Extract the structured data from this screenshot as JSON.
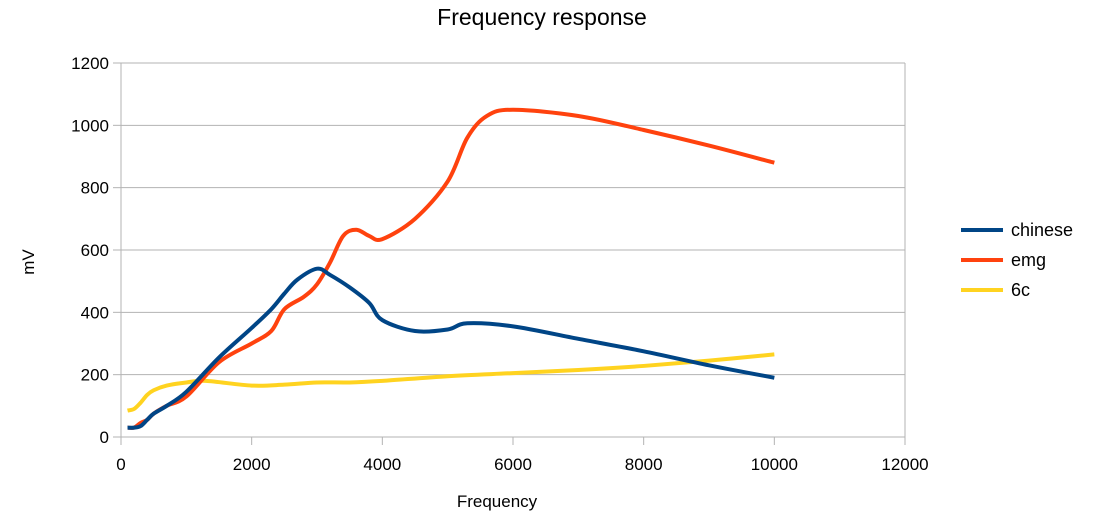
{
  "chart_data": {
    "type": "line",
    "title": "Frequency response",
    "xlabel": "Frequency",
    "ylabel": "mV",
    "xlim": [
      0,
      12000
    ],
    "ylim": [
      0,
      1200
    ],
    "x_ticks": [
      "0",
      "2000",
      "4000",
      "6000",
      "8000",
      "10000",
      "12000"
    ],
    "y_ticks": [
      "0",
      "200",
      "400",
      "600",
      "800",
      "1000",
      "1200"
    ],
    "grid": true,
    "legend_position": "right",
    "series": [
      {
        "name": "chinese",
        "color": "#004586",
        "x": [
          100,
          200,
          300,
          400,
          500,
          700,
          1000,
          1500,
          2000,
          2300,
          2500,
          2700,
          3000,
          3200,
          3500,
          3800,
          4000,
          4500,
          5000,
          5300,
          6000,
          7000,
          8000,
          9000,
          10000
        ],
        "y": [
          30,
          30,
          35,
          55,
          75,
          100,
          145,
          255,
          350,
          410,
          460,
          505,
          540,
          520,
          480,
          430,
          375,
          340,
          345,
          365,
          355,
          315,
          275,
          230,
          190
        ]
      },
      {
        "name": "emg",
        "color": "#ff420e",
        "x": [
          100,
          200,
          300,
          400,
          500,
          700,
          1000,
          1500,
          2000,
          2300,
          2500,
          2800,
          3000,
          3200,
          3400,
          3600,
          3800,
          4000,
          4500,
          5000,
          5300,
          5600,
          6000,
          7000,
          8000,
          9000,
          10000
        ],
        "y": [
          30,
          30,
          45,
          55,
          75,
          100,
          130,
          240,
          300,
          340,
          410,
          450,
          490,
          560,
          645,
          665,
          645,
          635,
          700,
          820,
          960,
          1030,
          1050,
          1030,
          985,
          935,
          880
        ]
      },
      {
        "name": "6c",
        "color": "#ffd320",
        "x": [
          100,
          200,
          300,
          400,
          500,
          700,
          1000,
          1300,
          2000,
          2500,
          3000,
          3500,
          4000,
          5000,
          6000,
          7000,
          8000,
          9000,
          10000
        ],
        "y": [
          85,
          90,
          110,
          135,
          150,
          165,
          175,
          180,
          165,
          168,
          175,
          175,
          180,
          195,
          205,
          215,
          228,
          245,
          265
        ]
      }
    ]
  }
}
